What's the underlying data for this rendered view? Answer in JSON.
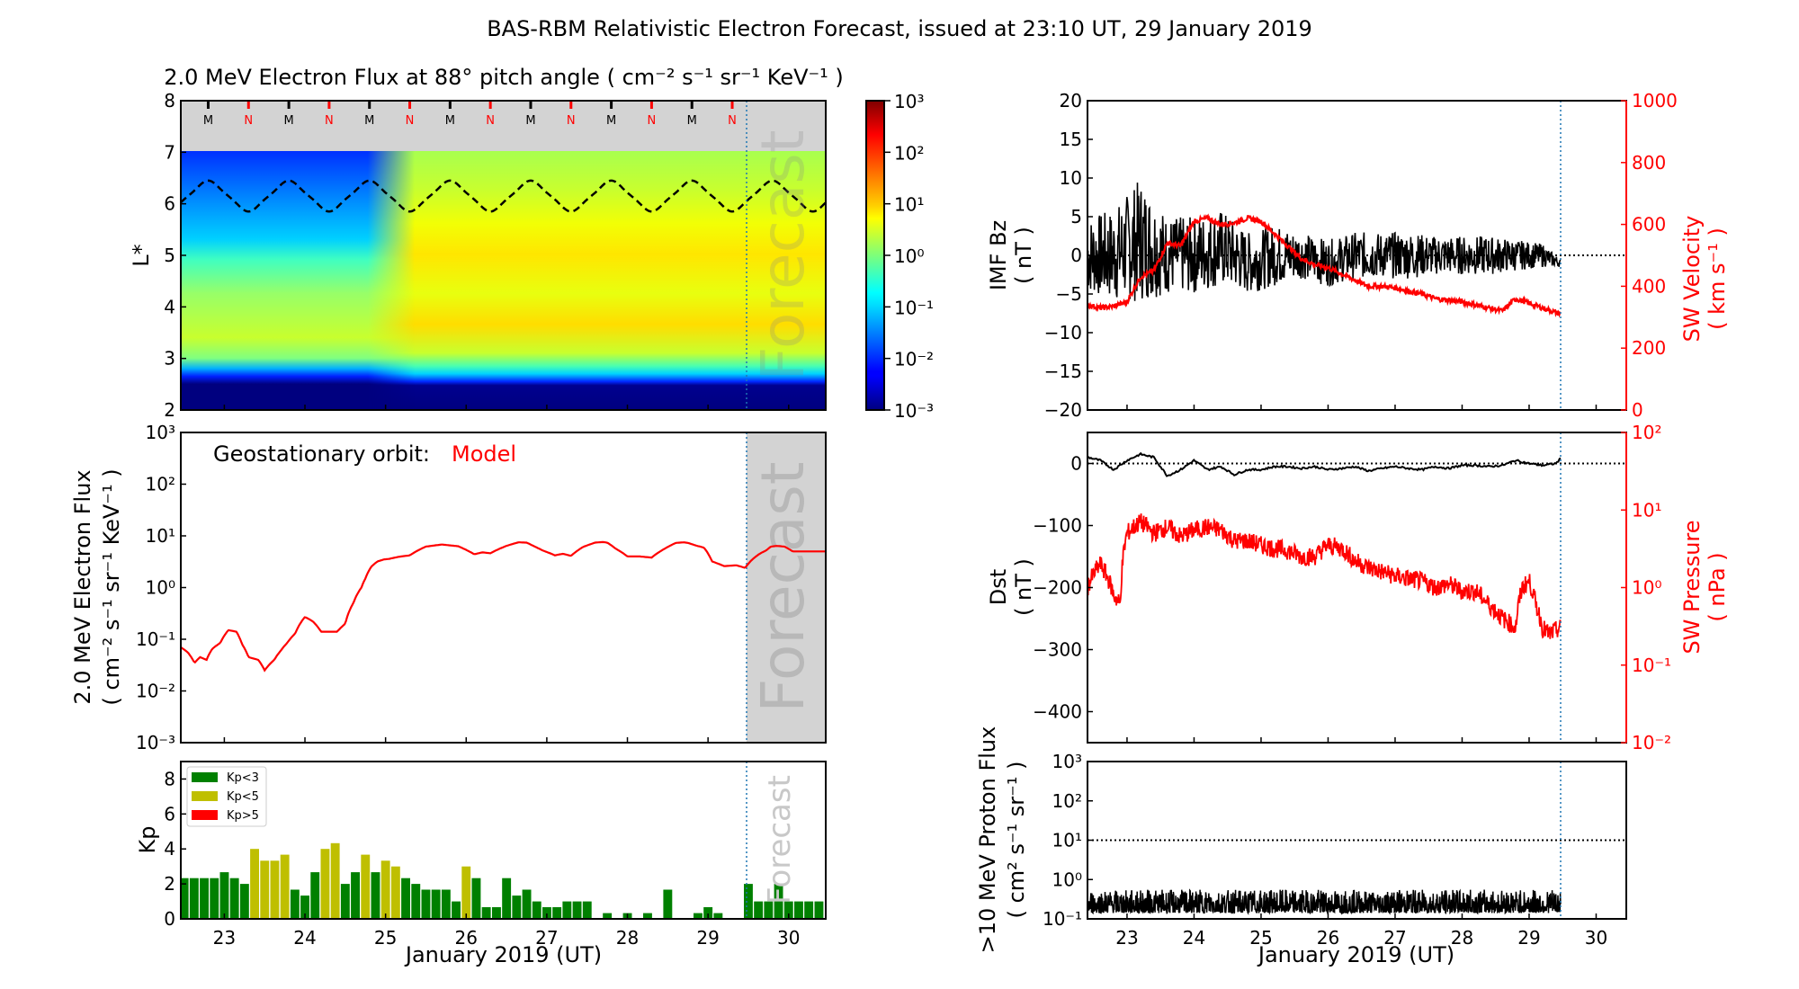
{
  "figure": {
    "suptitle": "BAS-RBM Relativistic Electron Forecast, issued at 23:10 UT, 29 January 2019",
    "xlabel": "January 2019 (UT)",
    "forecast_label": "Forecast",
    "forecast_start_day": 29.46,
    "colors": {
      "model_red": "#ff0000",
      "forecast_line": "#1f77b4",
      "forecast_shade": "#d3d3d3",
      "kp_green": "#008000",
      "kp_yellow": "#bfbf00",
      "kp_red": "#ff0000"
    }
  },
  "chart_data": [
    {
      "id": "lstar_heatmap",
      "type": "heatmap",
      "title": "2.0 MeV Electron Flux at 88° pitch angle ( cm⁻² s⁻¹ sr⁻¹ KeV⁻¹ )",
      "ylabel": "L*",
      "xlim": [
        22.46,
        30.46
      ],
      "ylim": [
        2,
        8
      ],
      "yticks": [
        "2",
        "3",
        "4",
        "5",
        "6",
        "7",
        "8"
      ],
      "colorbar": {
        "scale": "log",
        "range": [
          0.001,
          1000
        ],
        "ticks": [
          "10⁻³",
          "10⁻²",
          "10⁻¹",
          "10⁰",
          "10¹",
          "10²",
          "10³"
        ],
        "colormap": "jet"
      },
      "no_data_region_L": [
        7,
        8
      ],
      "mn_markers": {
        "labels": [
          "M",
          "N",
          "M",
          "N",
          "M",
          "N",
          "M",
          "N",
          "M",
          "N",
          "M",
          "N",
          "M",
          "N"
        ],
        "days": [
          22.8,
          23.3,
          23.8,
          24.3,
          24.8,
          25.3,
          25.8,
          26.3,
          26.8,
          27.3,
          27.8,
          28.3,
          28.8,
          29.3
        ]
      },
      "geo_lstar_dashed": {
        "min": 5.85,
        "max": 6.45,
        "period_days": 1.0,
        "phase_day": 22.8
      },
      "description": "Flux ~1e-3 below L*=3.0; steep rise at L*~3.2; peak ~10 at L*~4.1 and L*~5.2-5.6 after Jan 25; low (1e-2 to 1e-1) at L*>5.8 before Jan 25"
    },
    {
      "id": "geo_flux",
      "type": "line",
      "annotation_label": "Geostationary orbit:",
      "annotation_value": "Model",
      "ylabel": "2.0 MeV Electron Flux",
      "ylabel2": "( cm⁻² s⁻¹ sr⁻¹ KeV⁻¹ )",
      "yscale": "log",
      "ylim": [
        0.001,
        1000
      ],
      "yticks": [
        "10⁻³",
        "10⁻²",
        "10⁻¹",
        "10⁰",
        "10¹",
        "10²",
        "10³"
      ],
      "xlim": [
        22.46,
        30.46
      ],
      "series": [
        {
          "name": "Model",
          "x": [
            22.46,
            22.55,
            22.63,
            22.7,
            22.78,
            22.85,
            22.95,
            23.05,
            23.15,
            23.22,
            23.3,
            23.42,
            23.5,
            23.62,
            23.7,
            23.78,
            23.88,
            24.0,
            24.1,
            24.2,
            24.3,
            24.4,
            24.5,
            24.6,
            24.7,
            24.75,
            24.82,
            24.9,
            24.98,
            25.05,
            25.15,
            25.3,
            25.5,
            25.7,
            25.9,
            26.1,
            26.2,
            26.3,
            26.5,
            26.65,
            26.75,
            26.85,
            26.95,
            27.1,
            27.2,
            27.3,
            27.45,
            27.6,
            27.7,
            27.75,
            27.85,
            28.0,
            28.15,
            28.3,
            28.45,
            28.6,
            28.7,
            28.75,
            28.85,
            28.95,
            29.05,
            29.2,
            29.35,
            29.46,
            29.55,
            29.65,
            29.72,
            29.78,
            29.85,
            29.95,
            30.05,
            30.2,
            30.35,
            30.46
          ],
          "y": [
            0.07,
            0.055,
            0.035,
            0.045,
            0.04,
            0.065,
            0.085,
            0.15,
            0.14,
            0.08,
            0.045,
            0.04,
            0.025,
            0.04,
            0.06,
            0.085,
            0.13,
            0.27,
            0.22,
            0.14,
            0.14,
            0.14,
            0.2,
            0.5,
            1.0,
            1.5,
            2.5,
            3.2,
            3.5,
            3.6,
            3.9,
            4.2,
            6.2,
            6.8,
            6.3,
            4.4,
            4.8,
            4.6,
            6.4,
            7.5,
            7.4,
            6.2,
            5.2,
            4.2,
            4.5,
            4.1,
            6.1,
            7.4,
            7.6,
            7.4,
            5.7,
            4.0,
            4.0,
            3.8,
            5.5,
            7.3,
            7.5,
            7.3,
            6.5,
            5.9,
            3.2,
            2.6,
            2.7,
            2.4,
            3.5,
            4.6,
            5.2,
            6.2,
            6.4,
            6.2,
            5.0,
            5.0,
            5.0,
            5.0
          ]
        }
      ]
    },
    {
      "id": "kp",
      "type": "bar",
      "ylabel": "Kp",
      "ylim": [
        0,
        9
      ],
      "yticks": [
        "0",
        "2",
        "4",
        "6",
        "8"
      ],
      "xlim": [
        22.46,
        30.46
      ],
      "xticks": [
        "23",
        "24",
        "25",
        "26",
        "27",
        "28",
        "29",
        "30"
      ],
      "bin_hours": 3,
      "first_bin_day": 22.5,
      "legend": {
        "position": "upper-left",
        "entries": [
          "Kp<3",
          "Kp<5",
          "Kp>5"
        ]
      },
      "values": [
        2.33,
        2.33,
        2.33,
        2.33,
        2.67,
        2.33,
        2.0,
        4.0,
        3.33,
        3.33,
        3.67,
        1.67,
        1.33,
        2.67,
        4.0,
        4.33,
        2.0,
        2.67,
        3.67,
        2.67,
        3.33,
        3.0,
        2.33,
        2.0,
        1.67,
        1.67,
        1.67,
        1.0,
        3.0,
        2.33,
        0.67,
        0.67,
        2.33,
        1.33,
        1.67,
        1.0,
        0.67,
        0.67,
        1.0,
        1.0,
        1.0,
        0,
        0.33,
        0,
        0.33,
        0,
        0.33,
        0,
        1.67,
        0,
        0,
        0.33,
        0.67,
        0.33,
        0,
        0,
        2.0,
        1.0,
        1.0,
        2.0,
        1.0,
        1.0,
        1.0,
        1.0
      ]
    },
    {
      "id": "imf_bz_sw_velocity",
      "type": "line",
      "ylabel": "IMF Bz",
      "ylabel_units": "( nT )",
      "ylim": [
        -20,
        20
      ],
      "yticks": [
        "−20",
        "−15",
        "−10",
        "−5",
        "0",
        "5",
        "10",
        "15",
        "20"
      ],
      "ylabel_right": "SW Velocity",
      "ylabel_right_units": "( km s⁻¹ )",
      "ylim_right": [
        0,
        1000
      ],
      "yticks_right": [
        "0",
        "200",
        "400",
        "600",
        "800",
        "1000"
      ],
      "xlim": [
        22.41,
        30.45
      ],
      "series": [
        {
          "name": "IMF Bz",
          "axis": "left",
          "color": "#000000",
          "noisy": true,
          "x": [
            22.41,
            22.8,
            23.2,
            23.6,
            24.0,
            24.4,
            24.8,
            25.2,
            25.6,
            26.0,
            26.4,
            26.8,
            27.2,
            27.6,
            28.0,
            28.4,
            28.8,
            29.2,
            29.47
          ],
          "y_center": [
            0,
            0,
            2,
            0,
            0,
            1,
            -1,
            0,
            0,
            -1,
            0,
            0,
            0,
            0,
            0,
            0,
            0,
            0,
            -1
          ],
          "y_spread": [
            5,
            6,
            8,
            5,
            5,
            5,
            4,
            4,
            3,
            3,
            3,
            3,
            3,
            2.5,
            2.5,
            2.5,
            2,
            1.5,
            0.5
          ]
        },
        {
          "name": "SW Velocity",
          "axis": "right",
          "color": "#ff0000",
          "x": [
            22.41,
            22.6,
            22.8,
            23.0,
            23.2,
            23.4,
            23.6,
            23.8,
            24.0,
            24.2,
            24.4,
            24.6,
            24.8,
            25.0,
            25.2,
            25.4,
            25.6,
            25.8,
            26.0,
            26.2,
            26.4,
            26.6,
            26.8,
            27.0,
            27.2,
            27.4,
            27.6,
            27.8,
            28.0,
            28.2,
            28.4,
            28.6,
            28.8,
            29.0,
            29.2,
            29.47
          ],
          "y": [
            340,
            330,
            335,
            350,
            430,
            450,
            540,
            530,
            610,
            620,
            600,
            605,
            620,
            610,
            570,
            530,
            490,
            470,
            460,
            440,
            420,
            400,
            400,
            395,
            385,
            375,
            360,
            355,
            350,
            340,
            330,
            320,
            360,
            345,
            330,
            310
          ]
        }
      ]
    },
    {
      "id": "dst_sw_pressure",
      "type": "line",
      "ylabel": "Dst",
      "ylabel_units": "( nT )",
      "ylim": [
        -450,
        50
      ],
      "yticks": [
        "−400",
        "−300",
        "−200",
        "−100",
        "0"
      ],
      "ylabel_right": "SW Pressure",
      "ylabel_right_units": "( nPa )",
      "yscale_right": "log",
      "ylim_right": [
        0.01,
        100
      ],
      "yticks_right": [
        "10⁻²",
        "10⁻¹",
        "10⁰",
        "10¹",
        "10²"
      ],
      "xlim": [
        22.41,
        30.45
      ],
      "series": [
        {
          "name": "Dst",
          "axis": "left",
          "color": "#000000",
          "x": [
            22.41,
            22.6,
            22.8,
            23.0,
            23.2,
            23.4,
            23.6,
            23.8,
            24.0,
            24.2,
            24.4,
            24.6,
            24.8,
            25.0,
            25.2,
            25.4,
            25.6,
            25.8,
            26.0,
            26.2,
            26.4,
            26.6,
            26.8,
            27.0,
            27.2,
            27.4,
            27.6,
            27.8,
            28.0,
            28.2,
            28.4,
            28.6,
            28.8,
            29.0,
            29.2,
            29.4,
            29.47
          ],
          "y": [
            10,
            5,
            -10,
            5,
            15,
            10,
            -20,
            -10,
            5,
            -10,
            -5,
            -18,
            -10,
            -10,
            -5,
            -5,
            -8,
            -5,
            -10,
            -8,
            -5,
            -12,
            -8,
            -5,
            -8,
            -10,
            -5,
            -8,
            -3,
            -3,
            -5,
            -3,
            5,
            0,
            -3,
            0,
            8
          ]
        },
        {
          "name": "SW Pressure",
          "axis": "right",
          "color": "#ff0000",
          "noisy": true,
          "x": [
            22.41,
            22.6,
            22.8,
            22.9,
            23.0,
            23.2,
            23.4,
            23.6,
            23.8,
            24.0,
            24.2,
            24.4,
            24.6,
            24.8,
            25.0,
            25.2,
            25.4,
            25.6,
            25.8,
            26.0,
            26.2,
            26.4,
            26.6,
            26.8,
            27.0,
            27.2,
            27.4,
            27.6,
            27.8,
            28.0,
            28.2,
            28.4,
            28.6,
            28.8,
            28.9,
            29.0,
            29.1,
            29.2,
            29.3,
            29.47
          ],
          "y": [
            1.0,
            2.0,
            0.8,
            0.6,
            5.0,
            7.0,
            5.0,
            6.0,
            4.5,
            5.5,
            6.0,
            5.5,
            4.0,
            4.0,
            3.5,
            3.2,
            3.0,
            2.5,
            2.5,
            3.5,
            3.2,
            2.2,
            1.8,
            1.6,
            1.4,
            1.3,
            1.2,
            1.0,
            1.1,
            0.9,
            0.9,
            0.6,
            0.4,
            0.3,
            1.0,
            1.2,
            0.6,
            0.3,
            0.25,
            0.3
          ]
        }
      ]
    },
    {
      "id": "proton_flux",
      "type": "line",
      "ylabel": ">10 MeV Proton Flux",
      "ylabel_units": "( cm² s⁻¹ sr⁻¹ )",
      "yscale": "log",
      "ylim": [
        0.1,
        1000
      ],
      "yticks": [
        "10⁻¹",
        "10⁰",
        "10¹",
        "10²",
        "10³"
      ],
      "xlim": [
        22.41,
        30.45
      ],
      "xticks": [
        "23",
        "24",
        "25",
        "26",
        "27",
        "28",
        "29",
        "30"
      ],
      "threshold": 10,
      "series": [
        {
          "name": ">10 MeV Proton Flux",
          "color": "#000000",
          "noisy": true,
          "x": [
            22.41,
            29.47
          ],
          "y_center": [
            0.25,
            0.25
          ],
          "y_range": [
            0.12,
            0.6
          ]
        }
      ]
    }
  ]
}
